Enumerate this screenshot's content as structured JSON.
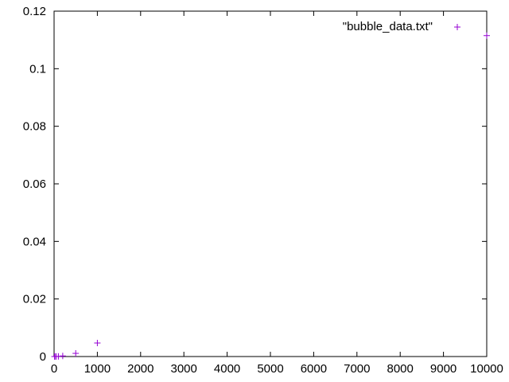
{
  "colors": {
    "series": "#9400d3",
    "axis": "#000000",
    "background": "#ffffff"
  },
  "chart_data": {
    "type": "scatter",
    "title": "",
    "xlabel": "",
    "ylabel": "",
    "xlim": [
      0,
      10000
    ],
    "ylim": [
      0,
      0.12
    ],
    "x_ticks": [
      0,
      1000,
      2000,
      3000,
      4000,
      5000,
      6000,
      7000,
      8000,
      9000,
      10000
    ],
    "x_tick_labels": [
      "0",
      "1000",
      "2000",
      "3000",
      "4000",
      "5000",
      "6000",
      "7000",
      "8000",
      "9000",
      "10000"
    ],
    "y_ticks": [
      0,
      0.02,
      0.04,
      0.06,
      0.08,
      0.1,
      0.12
    ],
    "y_tick_labels": [
      "0",
      "0.02",
      "0.04",
      "0.06",
      "0.08",
      "0.1",
      "0.12"
    ],
    "grid": false,
    "legend_position": "top-right",
    "series": [
      {
        "name": "\"bubble_data.txt\"",
        "marker": "+",
        "x": [
          10,
          20,
          50,
          100,
          200,
          500,
          1000,
          10000
        ],
        "y": [
          2e-06,
          5e-06,
          2e-05,
          5e-05,
          0.0002,
          0.0011,
          0.0047,
          0.1115
        ]
      }
    ]
  }
}
